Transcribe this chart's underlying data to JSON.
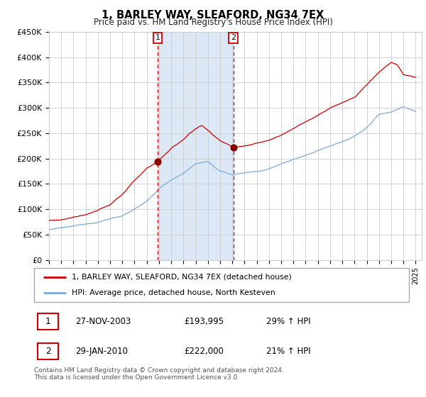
{
  "title": "1, BARLEY WAY, SLEAFORD, NG34 7EX",
  "subtitle": "Price paid vs. HM Land Registry's House Price Index (HPI)",
  "ylim": [
    0,
    450000
  ],
  "yticks": [
    0,
    50000,
    100000,
    150000,
    200000,
    250000,
    300000,
    350000,
    400000,
    450000
  ],
  "ytick_labels": [
    "£0",
    "£50K",
    "£100K",
    "£150K",
    "£200K",
    "£250K",
    "£300K",
    "£350K",
    "£400K",
    "£450K"
  ],
  "xlim_start": 1995.0,
  "xlim_end": 2025.5,
  "sale1_date": 2003.9,
  "sale1_price": 193995,
  "sale1_label": "27-NOV-2003",
  "sale1_amount": "£193,995",
  "sale1_hpi": "29% ↑ HPI",
  "sale2_date": 2010.08,
  "sale2_price": 222000,
  "sale2_label": "29-JAN-2010",
  "sale2_amount": "£222,000",
  "sale2_hpi": "21% ↑ HPI",
  "legend_line1": "1, BARLEY WAY, SLEAFORD, NG34 7EX (detached house)",
  "legend_line2": "HPI: Average price, detached house, North Kesteven",
  "footer": "Contains HM Land Registry data © Crown copyright and database right 2024.\nThis data is licensed under the Open Government Licence v3.0.",
  "red_color": "#cc0000",
  "blue_color": "#7aaadd",
  "highlight_bg": "#dce8f5",
  "chart_bg": "#ffffff",
  "grid_color": "#cccccc"
}
